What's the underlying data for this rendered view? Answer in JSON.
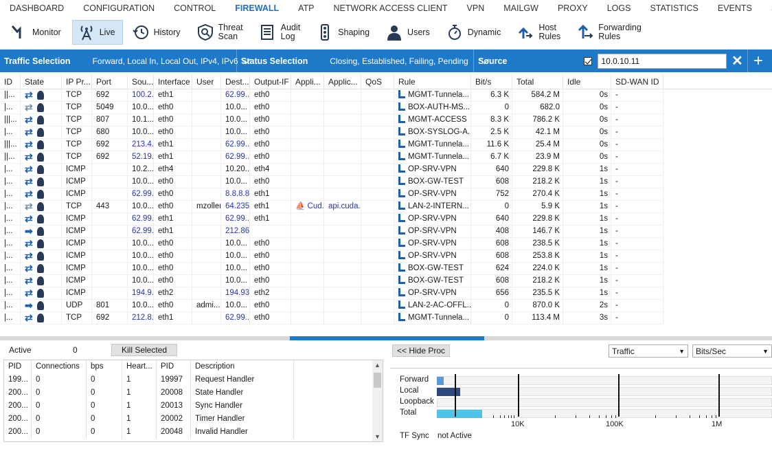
{
  "topmenu": [
    "DASHBOARD",
    "CONFIGURATION",
    "CONTROL",
    "FIREWALL",
    "ATP",
    "NETWORK ACCESS CLIENT",
    "VPN",
    "MAILGW",
    "PROXY",
    "LOGS",
    "STATISTICS",
    "EVENTS",
    "SSH"
  ],
  "toolbar": [
    {
      "label": "Monitor",
      "icon": "monitor-icon"
    },
    {
      "label": "Live",
      "icon": "antenna-icon"
    },
    {
      "label": "History",
      "icon": "history-icon"
    },
    {
      "label": "Threat\nScan",
      "icon": "threat-scan-icon"
    },
    {
      "label": "Audit\nLog",
      "icon": "audit-log-icon"
    },
    {
      "label": "Shaping",
      "icon": "traffic-light-icon"
    },
    {
      "label": "Users",
      "icon": "user-icon"
    },
    {
      "label": "Dynamic",
      "icon": "stopwatch-icon"
    },
    {
      "label": "Host\nRules",
      "icon": "host-rules-icon"
    },
    {
      "label": "Forwarding\nRules",
      "icon": "forwarding-rules-icon"
    }
  ],
  "filters": {
    "traffic_title": "Traffic Selection",
    "traffic_value": "Forward, Local In, Local Out, IPv4, IPv6",
    "status_title": "Status Selection",
    "status_value": "Closing, Established, Failing, Pending",
    "source_title": "Source",
    "source_value": "10.0.10.11"
  },
  "columns": [
    "ID",
    "State",
    "IP Pr...",
    "Port",
    "Sou...",
    "Interface",
    "User",
    "Dest...",
    "Output-IF",
    "Appli...",
    "Applic...",
    "QoS",
    "Rule",
    "Bit/s",
    "Total",
    "Idle",
    "SD-WAN ID"
  ],
  "rows": [
    {
      "id": "||...",
      "st": "a",
      "proto": "TCP",
      "port": "692",
      "src": "100.2...",
      "sb": true,
      "if": "eth1",
      "user": "",
      "dst": "62.99...",
      "db": true,
      "oif": "eth0",
      "app": "",
      "app2": "",
      "rule": "MGMT-Tunnela...",
      "bits": "6.3 K",
      "total": "584.2 M",
      "idle": "0s",
      "sdw": "-"
    },
    {
      "id": "|...",
      "st": "g",
      "proto": "TCP",
      "port": "5049",
      "src": "10.0...",
      "sb": false,
      "if": "eth0",
      "user": "",
      "dst": "10.0...",
      "db": false,
      "oif": "eth0",
      "app": "",
      "app2": "",
      "rule": "BOX-AUTH-MS...",
      "bits": "0",
      "total": "682.0",
      "idle": "0s",
      "sdw": "-"
    },
    {
      "id": "|||...",
      "st": "a",
      "proto": "TCP",
      "port": "807",
      "src": "10.1...",
      "sb": false,
      "if": "eth0",
      "user": "",
      "dst": "10.0...",
      "db": false,
      "oif": "eth0",
      "app": "",
      "app2": "",
      "rule": "MGMT-ACCESS",
      "bits": "8.3 K",
      "total": "786.2 K",
      "idle": "0s",
      "sdw": "-"
    },
    {
      "id": "|...",
      "st": "a",
      "proto": "TCP",
      "port": "680",
      "src": "10.0...",
      "sb": false,
      "if": "eth0",
      "user": "",
      "dst": "10.0...",
      "db": false,
      "oif": "eth0",
      "app": "",
      "app2": "",
      "rule": "BOX-SYSLOG-A...",
      "bits": "2.5 K",
      "total": "42.1 M",
      "idle": "0s",
      "sdw": "-"
    },
    {
      "id": "|||...",
      "st": "a",
      "proto": "TCP",
      "port": "692",
      "src": "213.4...",
      "sb": true,
      "if": "eth1",
      "user": "",
      "dst": "62.99...",
      "db": true,
      "oif": "eth0",
      "app": "",
      "app2": "",
      "rule": "MGMT-Tunnela...",
      "bits": "11.6 K",
      "total": "25.4 M",
      "idle": "0s",
      "sdw": "-"
    },
    {
      "id": "||...",
      "st": "a",
      "proto": "TCP",
      "port": "692",
      "src": "52.19...",
      "sb": true,
      "if": "eth1",
      "user": "",
      "dst": "62.99...",
      "db": true,
      "oif": "eth0",
      "app": "",
      "app2": "",
      "rule": "MGMT-Tunnela...",
      "bits": "6.7 K",
      "total": "23.9 M",
      "idle": "0s",
      "sdw": "-"
    },
    {
      "id": "|...",
      "st": "a",
      "proto": "ICMP",
      "port": "",
      "src": "10.2...",
      "sb": false,
      "if": "eth4",
      "user": "",
      "dst": "10.20...",
      "db": false,
      "oif": "eth4",
      "app": "",
      "app2": "",
      "rule": "OP-SRV-VPN",
      "bits": "640",
      "total": "229.8 K",
      "idle": "1s",
      "sdw": "-"
    },
    {
      "id": "|...",
      "st": "a",
      "proto": "ICMP",
      "port": "",
      "src": "10.0...",
      "sb": false,
      "if": "eth0",
      "user": "",
      "dst": "10.0...",
      "db": false,
      "oif": "eth0",
      "app": "",
      "app2": "",
      "rule": "BOX-GW-TEST",
      "bits": "608",
      "total": "218.2 K",
      "idle": "1s",
      "sdw": "-"
    },
    {
      "id": "|...",
      "st": "a",
      "proto": "ICMP",
      "port": "",
      "src": "62.99...",
      "sb": true,
      "if": "eth0",
      "user": "",
      "dst": "8.8.8.8",
      "db": true,
      "oif": "eth1",
      "app": "",
      "app2": "",
      "rule": "OP-SRV-VPN",
      "bits": "752",
      "total": "270.4 K",
      "idle": "1s",
      "sdw": "-"
    },
    {
      "id": "|...",
      "st": "g",
      "proto": "TCP",
      "port": "443",
      "src": "10.0...",
      "sb": false,
      "if": "eth0",
      "user": "mzoller",
      "dst": "64.235...",
      "db": true,
      "oif": "eth1",
      "app": "Cud...",
      "app2": "api.cuda...",
      "rule": "LAN-2-INTERN...",
      "bits": "0",
      "total": "5.9 K",
      "idle": "1s",
      "sdw": "-"
    },
    {
      "id": "|...",
      "st": "a",
      "proto": "ICMP",
      "port": "",
      "src": "62.99...",
      "sb": true,
      "if": "eth1",
      "user": "",
      "dst": "62.99...",
      "db": true,
      "oif": "eth1",
      "app": "",
      "app2": "",
      "rule": "OP-SRV-VPN",
      "bits": "640",
      "total": "229.8 K",
      "idle": "1s",
      "sdw": "-"
    },
    {
      "id": "|...",
      "st": "r",
      "proto": "ICMP",
      "port": "",
      "src": "62.99...",
      "sb": true,
      "if": "eth1",
      "user": "",
      "dst": "212.86...",
      "db": true,
      "oif": "",
      "app": "",
      "app2": "",
      "rule": "OP-SRV-VPN",
      "bits": "408",
      "total": "146.7 K",
      "idle": "1s",
      "sdw": "-"
    },
    {
      "id": "|...",
      "st": "a",
      "proto": "ICMP",
      "port": "",
      "src": "10.0...",
      "sb": false,
      "if": "eth0",
      "user": "",
      "dst": "10.0...",
      "db": false,
      "oif": "eth0",
      "app": "",
      "app2": "",
      "rule": "OP-SRV-VPN",
      "bits": "608",
      "total": "238.5 K",
      "idle": "1s",
      "sdw": "-"
    },
    {
      "id": "|...",
      "st": "a",
      "proto": "ICMP",
      "port": "",
      "src": "10.0...",
      "sb": false,
      "if": "eth0",
      "user": "",
      "dst": "10.0...",
      "db": false,
      "oif": "eth0",
      "app": "",
      "app2": "",
      "rule": "OP-SRV-VPN",
      "bits": "608",
      "total": "253.8 K",
      "idle": "1s",
      "sdw": "-"
    },
    {
      "id": "|...",
      "st": "a",
      "proto": "ICMP",
      "port": "",
      "src": "10.0...",
      "sb": false,
      "if": "eth0",
      "user": "",
      "dst": "10.0...",
      "db": false,
      "oif": "eth0",
      "app": "",
      "app2": "",
      "rule": "BOX-GW-TEST",
      "bits": "624",
      "total": "224.0 K",
      "idle": "1s",
      "sdw": "-"
    },
    {
      "id": "|...",
      "st": "a",
      "proto": "ICMP",
      "port": "",
      "src": "10.0...",
      "sb": false,
      "if": "eth0",
      "user": "",
      "dst": "10.0...",
      "db": false,
      "oif": "eth0",
      "app": "",
      "app2": "",
      "rule": "BOX-GW-TEST",
      "bits": "608",
      "total": "218.2 K",
      "idle": "1s",
      "sdw": "-"
    },
    {
      "id": "|...",
      "st": "a",
      "proto": "ICMP",
      "port": "",
      "src": "194.9...",
      "sb": true,
      "if": "eth2",
      "user": "",
      "dst": "194.93...",
      "db": true,
      "oif": "eth2",
      "app": "",
      "app2": "",
      "rule": "OP-SRV-VPN",
      "bits": "656",
      "total": "235.5 K",
      "idle": "1s",
      "sdw": "-"
    },
    {
      "id": "|...",
      "st": "r",
      "proto": "UDP",
      "port": "801",
      "src": "10.0...",
      "sb": false,
      "if": "eth0",
      "user": "admi...",
      "dst": "10.0...",
      "db": false,
      "oif": "eth0",
      "app": "",
      "app2": "",
      "rule": "LAN-2-AC-OFFL...",
      "bits": "0",
      "total": "870.0 K",
      "idle": "2s",
      "sdw": "-"
    },
    {
      "id": "|...",
      "st": "a",
      "proto": "TCP",
      "port": "692",
      "src": "212.8...",
      "sb": true,
      "if": "eth1",
      "user": "",
      "dst": "62.99...",
      "db": true,
      "oif": "eth0",
      "app": "",
      "app2": "",
      "rule": "MGMT-Tunnela...",
      "bits": "0",
      "total": "113.4 M",
      "idle": "3s",
      "sdw": "-"
    }
  ],
  "procs": {
    "active_label": "Active",
    "active_count": "0",
    "kill_label": "Kill Selected",
    "columns": [
      "PID",
      "Connections",
      "bps",
      "Heart...",
      "PID",
      "Description"
    ],
    "rows": [
      [
        "199...",
        "0",
        "0",
        "1",
        "19997",
        "Request Handler"
      ],
      [
        "200...",
        "0",
        "0",
        "1",
        "20008",
        "State Handler"
      ],
      [
        "200...",
        "0",
        "0",
        "1",
        "20013",
        "Sync Handler"
      ],
      [
        "200...",
        "0",
        "0",
        "1",
        "20002",
        "Timer Handler"
      ],
      [
        "200...",
        "0",
        "0",
        "1",
        "20048",
        "Invalid Handler"
      ]
    ]
  },
  "traffic_panel": {
    "hide_label": "<< Hide Proc",
    "select1": "Traffic",
    "select2": "Bits/Sec",
    "labels": [
      "Forward",
      "Local",
      "Loopback",
      "Total"
    ],
    "axis": [
      "10K",
      "100K",
      "1M"
    ],
    "tf_sync_label": "TF Sync",
    "tf_sync_value": "not Active",
    "colors": {
      "forward": "#5b9bd5",
      "local": "#2f4a7a",
      "total": "#4fc3e8"
    }
  },
  "chart_data": {
    "type": "bar",
    "categories": [
      "Forward",
      "Local",
      "Loopback",
      "Total"
    ],
    "values": [
      1600,
      5300,
      0,
      10300
    ],
    "xscale": "log",
    "xticks": [
      "10K",
      "100K",
      "1M"
    ],
    "units": "Bits/Sec"
  }
}
